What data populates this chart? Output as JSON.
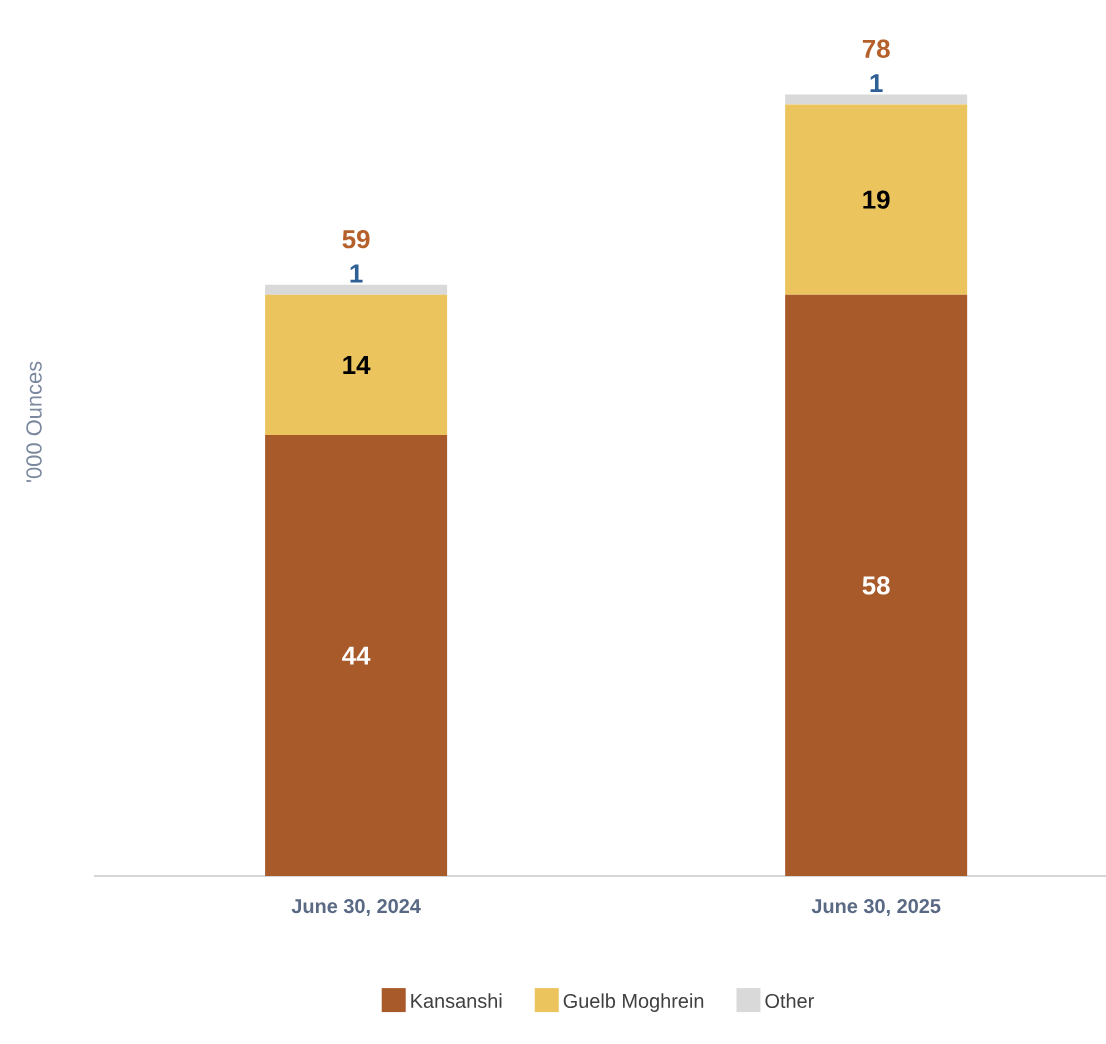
{
  "chart_data": {
    "type": "bar",
    "stacked": true,
    "ylabel": "'000 Ounces",
    "categories": [
      "June 30, 2024",
      "June 30, 2025"
    ],
    "series": [
      {
        "name": "Kansanshi",
        "color": "#a85a2a",
        "values": [
          44,
          58
        ]
      },
      {
        "name": "Guelb Moghrein",
        "color": "#ecc45e",
        "values": [
          14,
          19
        ]
      },
      {
        "name": "Other",
        "color": "#d9d9d9",
        "values": [
          1,
          1
        ]
      }
    ],
    "data_labels": true,
    "totals": [
      "59",
      "78"
    ],
    "legend": "bottom"
  }
}
